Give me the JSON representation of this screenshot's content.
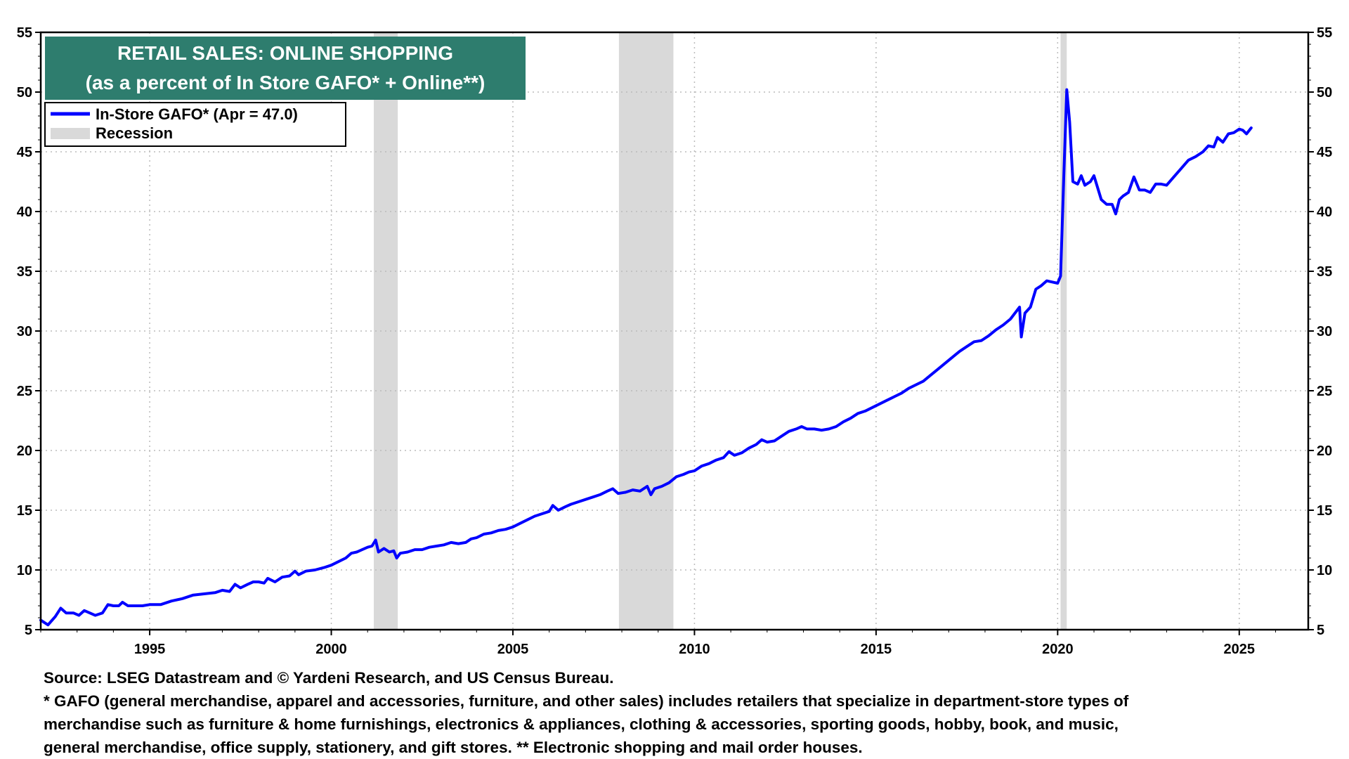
{
  "colors": {
    "series": "#0000ff",
    "recession": "#d9d9d9",
    "title_bg": "#2e7d6e",
    "grid": "#bbbbbb"
  },
  "chart_data": {
    "type": "line",
    "title": "RETAIL SALES: ONLINE SHOPPING",
    "subtitle": "(as a percent of In Store GAFO* + Online**)",
    "xlabel": "",
    "ylabel": "",
    "xlim": [
      1992.0,
      2026.9
    ],
    "ylim": [
      5,
      55
    ],
    "x_ticks": [
      1995,
      2000,
      2005,
      2010,
      2015,
      2020,
      2025
    ],
    "y_ticks": [
      5,
      10,
      15,
      20,
      25,
      30,
      35,
      40,
      45,
      50,
      55
    ],
    "grid": true,
    "legend_position": "top-left",
    "legend": [
      {
        "label": "In-Store GAFO* (Apr = 47.0)",
        "kind": "line"
      },
      {
        "label": "Recession",
        "kind": "shade"
      }
    ],
    "recessions": [
      [
        2001.17,
        2001.83
      ],
      [
        2007.92,
        2009.42
      ],
      [
        2020.08,
        2020.25
      ]
    ],
    "series": [
      {
        "name": "In-Store GAFO* (Apr = 47.0)",
        "points": [
          [
            1992.0,
            5.8
          ],
          [
            1992.2,
            5.4
          ],
          [
            1992.4,
            6.1
          ],
          [
            1992.55,
            6.8
          ],
          [
            1992.7,
            6.4
          ],
          [
            1992.9,
            6.4
          ],
          [
            1993.05,
            6.2
          ],
          [
            1993.2,
            6.6
          ],
          [
            1993.35,
            6.4
          ],
          [
            1993.5,
            6.2
          ],
          [
            1993.7,
            6.4
          ],
          [
            1993.85,
            7.1
          ],
          [
            1994.0,
            7.0
          ],
          [
            1994.15,
            7.0
          ],
          [
            1994.25,
            7.3
          ],
          [
            1994.4,
            7.0
          ],
          [
            1994.6,
            7.0
          ],
          [
            1994.8,
            7.0
          ],
          [
            1995.0,
            7.1
          ],
          [
            1995.3,
            7.1
          ],
          [
            1995.6,
            7.4
          ],
          [
            1995.9,
            7.6
          ],
          [
            1996.2,
            7.9
          ],
          [
            1996.5,
            8.0
          ],
          [
            1996.8,
            8.1
          ],
          [
            1997.0,
            8.3
          ],
          [
            1997.2,
            8.2
          ],
          [
            1997.35,
            8.8
          ],
          [
            1997.5,
            8.5
          ],
          [
            1997.7,
            8.8
          ],
          [
            1997.85,
            9.0
          ],
          [
            1998.0,
            9.0
          ],
          [
            1998.15,
            8.9
          ],
          [
            1998.25,
            9.3
          ],
          [
            1998.45,
            9.0
          ],
          [
            1998.65,
            9.4
          ],
          [
            1998.85,
            9.5
          ],
          [
            1999.0,
            9.9
          ],
          [
            1999.1,
            9.6
          ],
          [
            1999.3,
            9.9
          ],
          [
            1999.55,
            10.0
          ],
          [
            1999.8,
            10.2
          ],
          [
            2000.0,
            10.4
          ],
          [
            2000.2,
            10.7
          ],
          [
            2000.4,
            11.0
          ],
          [
            2000.55,
            11.4
          ],
          [
            2000.7,
            11.5
          ],
          [
            2000.85,
            11.7
          ],
          [
            2001.0,
            11.9
          ],
          [
            2001.12,
            12.0
          ],
          [
            2001.22,
            12.5
          ],
          [
            2001.3,
            11.5
          ],
          [
            2001.45,
            11.8
          ],
          [
            2001.6,
            11.5
          ],
          [
            2001.72,
            11.6
          ],
          [
            2001.8,
            11.0
          ],
          [
            2001.9,
            11.4
          ],
          [
            2002.1,
            11.5
          ],
          [
            2002.3,
            11.7
          ],
          [
            2002.5,
            11.7
          ],
          [
            2002.7,
            11.9
          ],
          [
            2002.9,
            12.0
          ],
          [
            2003.1,
            12.1
          ],
          [
            2003.3,
            12.3
          ],
          [
            2003.5,
            12.2
          ],
          [
            2003.7,
            12.3
          ],
          [
            2003.85,
            12.6
          ],
          [
            2004.0,
            12.7
          ],
          [
            2004.2,
            13.0
          ],
          [
            2004.4,
            13.1
          ],
          [
            2004.6,
            13.3
          ],
          [
            2004.8,
            13.4
          ],
          [
            2005.0,
            13.6
          ],
          [
            2005.2,
            13.9
          ],
          [
            2005.4,
            14.2
          ],
          [
            2005.6,
            14.5
          ],
          [
            2005.8,
            14.7
          ],
          [
            2006.0,
            14.9
          ],
          [
            2006.1,
            15.4
          ],
          [
            2006.25,
            15.0
          ],
          [
            2006.45,
            15.3
          ],
          [
            2006.6,
            15.5
          ],
          [
            2006.8,
            15.7
          ],
          [
            2007.0,
            15.9
          ],
          [
            2007.2,
            16.1
          ],
          [
            2007.4,
            16.3
          ],
          [
            2007.6,
            16.6
          ],
          [
            2007.75,
            16.8
          ],
          [
            2007.9,
            16.4
          ],
          [
            2008.1,
            16.5
          ],
          [
            2008.3,
            16.7
          ],
          [
            2008.5,
            16.6
          ],
          [
            2008.7,
            17.0
          ],
          [
            2008.8,
            16.3
          ],
          [
            2008.9,
            16.8
          ],
          [
            2009.1,
            17.0
          ],
          [
            2009.3,
            17.3
          ],
          [
            2009.5,
            17.8
          ],
          [
            2009.7,
            18.0
          ],
          [
            2009.85,
            18.2
          ],
          [
            2010.0,
            18.3
          ],
          [
            2010.2,
            18.7
          ],
          [
            2010.4,
            18.9
          ],
          [
            2010.6,
            19.2
          ],
          [
            2010.8,
            19.4
          ],
          [
            2010.95,
            19.9
          ],
          [
            2011.1,
            19.6
          ],
          [
            2011.3,
            19.8
          ],
          [
            2011.5,
            20.2
          ],
          [
            2011.7,
            20.5
          ],
          [
            2011.85,
            20.9
          ],
          [
            2012.0,
            20.7
          ],
          [
            2012.2,
            20.8
          ],
          [
            2012.4,
            21.2
          ],
          [
            2012.6,
            21.6
          ],
          [
            2012.8,
            21.8
          ],
          [
            2012.95,
            22.0
          ],
          [
            2013.1,
            21.8
          ],
          [
            2013.3,
            21.8
          ],
          [
            2013.5,
            21.7
          ],
          [
            2013.7,
            21.8
          ],
          [
            2013.9,
            22.0
          ],
          [
            2014.1,
            22.4
          ],
          [
            2014.3,
            22.7
          ],
          [
            2014.5,
            23.1
          ],
          [
            2014.7,
            23.3
          ],
          [
            2014.9,
            23.6
          ],
          [
            2015.1,
            23.9
          ],
          [
            2015.3,
            24.2
          ],
          [
            2015.5,
            24.5
          ],
          [
            2015.7,
            24.8
          ],
          [
            2015.9,
            25.2
          ],
          [
            2016.1,
            25.5
          ],
          [
            2016.3,
            25.8
          ],
          [
            2016.5,
            26.3
          ],
          [
            2016.7,
            26.8
          ],
          [
            2016.9,
            27.3
          ],
          [
            2017.1,
            27.8
          ],
          [
            2017.3,
            28.3
          ],
          [
            2017.5,
            28.7
          ],
          [
            2017.7,
            29.1
          ],
          [
            2017.9,
            29.2
          ],
          [
            2018.1,
            29.6
          ],
          [
            2018.3,
            30.1
          ],
          [
            2018.5,
            30.5
          ],
          [
            2018.7,
            31.0
          ],
          [
            2018.85,
            31.6
          ],
          [
            2018.95,
            32.0
          ],
          [
            2019.0,
            29.5
          ],
          [
            2019.1,
            31.5
          ],
          [
            2019.25,
            32.0
          ],
          [
            2019.4,
            33.5
          ],
          [
            2019.55,
            33.8
          ],
          [
            2019.7,
            34.2
          ],
          [
            2019.85,
            34.1
          ],
          [
            2020.0,
            34.0
          ],
          [
            2020.08,
            34.6
          ],
          [
            2020.17,
            43.0
          ],
          [
            2020.25,
            50.2
          ],
          [
            2020.33,
            47.5
          ],
          [
            2020.42,
            42.5
          ],
          [
            2020.55,
            42.3
          ],
          [
            2020.65,
            43.0
          ],
          [
            2020.75,
            42.2
          ],
          [
            2020.9,
            42.5
          ],
          [
            2021.0,
            43.0
          ],
          [
            2021.1,
            42.0
          ],
          [
            2021.2,
            41.0
          ],
          [
            2021.35,
            40.6
          ],
          [
            2021.5,
            40.6
          ],
          [
            2021.6,
            39.8
          ],
          [
            2021.7,
            41.0
          ],
          [
            2021.8,
            41.3
          ],
          [
            2021.95,
            41.6
          ],
          [
            2022.1,
            42.9
          ],
          [
            2022.25,
            41.8
          ],
          [
            2022.4,
            41.8
          ],
          [
            2022.55,
            41.6
          ],
          [
            2022.7,
            42.3
          ],
          [
            2022.85,
            42.3
          ],
          [
            2023.0,
            42.2
          ],
          [
            2023.2,
            42.9
          ],
          [
            2023.4,
            43.6
          ],
          [
            2023.6,
            44.3
          ],
          [
            2023.8,
            44.6
          ],
          [
            2024.0,
            45.0
          ],
          [
            2024.15,
            45.5
          ],
          [
            2024.3,
            45.4
          ],
          [
            2024.4,
            46.2
          ],
          [
            2024.55,
            45.8
          ],
          [
            2024.7,
            46.5
          ],
          [
            2024.85,
            46.6
          ],
          [
            2025.0,
            46.9
          ],
          [
            2025.1,
            46.8
          ],
          [
            2025.2,
            46.5
          ],
          [
            2025.33,
            47.0
          ]
        ]
      }
    ]
  },
  "footnotes": {
    "source": "Source: LSEG Datastream and © Yardeni Research, and US Census Bureau.",
    "line1": "* GAFO (general merchandise, apparel and accessories, furniture, and other sales) includes retailers that specialize in department-store types of",
    "line2": "merchandise such as furniture & home furnishings, electronics & appliances, clothing & accessories, sporting goods, hobby, book, and music,",
    "line3": "general merchandise, office supply, stationery, and gift stores. ** Electronic shopping and mail order houses."
  }
}
